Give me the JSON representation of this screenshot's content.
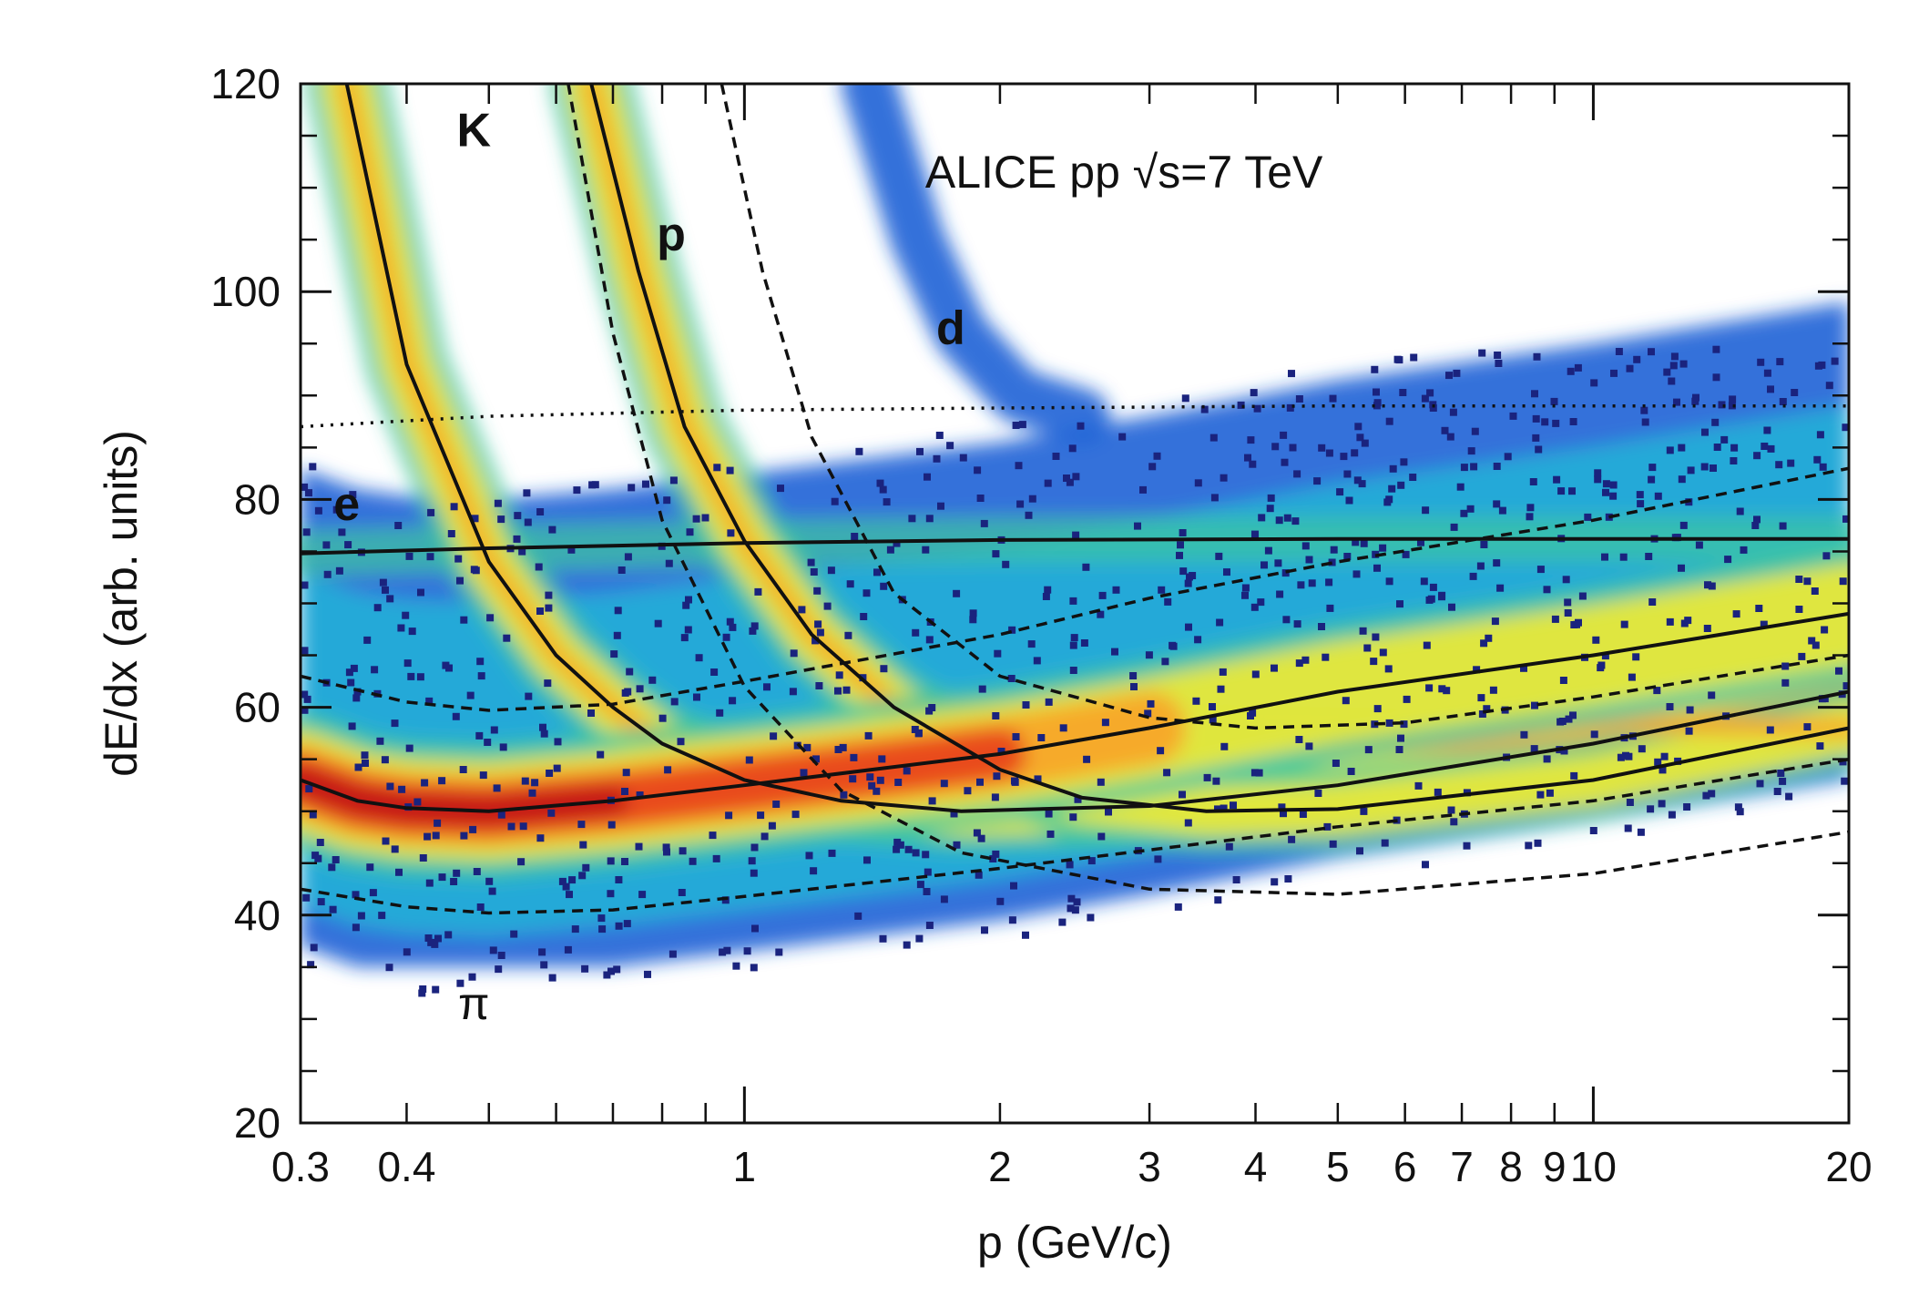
{
  "chart_data": {
    "type": "heatmap",
    "title": "",
    "xlabel": "p (GeV/c)",
    "ylabel": "dE/dx (arb. units)",
    "x_scale": "log",
    "xlim": [
      0.3,
      20
    ],
    "ylim": [
      20,
      120
    ],
    "x_ticks": [
      {
        "value": 0.3,
        "label": "0.3"
      },
      {
        "value": 0.4,
        "label": "0.4"
      },
      {
        "value": 1,
        "label": "1"
      },
      {
        "value": 2,
        "label": "2"
      },
      {
        "value": 3,
        "label": "3"
      },
      {
        "value": 4,
        "label": "4"
      },
      {
        "value": 5,
        "label": "5"
      },
      {
        "value": 6,
        "label": "6"
      },
      {
        "value": 7,
        "label": "7"
      },
      {
        "value": 8,
        "label": "8"
      },
      {
        "value": 9,
        "label": "9"
      },
      {
        "value": 10,
        "label": "10"
      },
      {
        "value": 20,
        "label": "20"
      }
    ],
    "y_ticks": [
      {
        "value": 20,
        "label": "20"
      },
      {
        "value": 40,
        "label": "40"
      },
      {
        "value": 60,
        "label": "60"
      },
      {
        "value": 80,
        "label": "80"
      },
      {
        "value": 100,
        "label": "100"
      },
      {
        "value": 120,
        "label": "120"
      }
    ],
    "colormap": [
      "#1a237e",
      "#1e63d6",
      "#20b4d8",
      "#3fc7a0",
      "#e8e83a",
      "#f7a72a",
      "#e8461e",
      "#c01414"
    ],
    "annotations": [
      {
        "text": "ALICE  pp   √s=7 TeV",
        "x": 2.8,
        "y": 110
      },
      {
        "text": "K",
        "x": 0.48,
        "y": 114
      },
      {
        "text": "p",
        "x": 0.82,
        "y": 104
      },
      {
        "text": "d",
        "x": 1.75,
        "y": 95
      },
      {
        "text": "e",
        "x": 0.34,
        "y": 78
      },
      {
        "text": "π",
        "x": 0.48,
        "y": 30
      }
    ],
    "bands": [
      {
        "name": "π",
        "points": [
          [
            0.3,
            53
          ],
          [
            0.35,
            51
          ],
          [
            0.4,
            50.3
          ],
          [
            0.5,
            50
          ],
          [
            0.7,
            51
          ],
          [
            1,
            52.5
          ],
          [
            2,
            55.5
          ],
          [
            3,
            58
          ],
          [
            5,
            61.5
          ],
          [
            10,
            65
          ],
          [
            20,
            69
          ]
        ]
      },
      {
        "name": "e",
        "points": [
          [
            0.3,
            74.8
          ],
          [
            0.5,
            75.3
          ],
          [
            1,
            75.8
          ],
          [
            2,
            76.1
          ],
          [
            5,
            76.2
          ],
          [
            20,
            76.2
          ]
        ]
      },
      {
        "name": "K",
        "points": [
          [
            0.34,
            120
          ],
          [
            0.4,
            93
          ],
          [
            0.5,
            74
          ],
          [
            0.6,
            65
          ],
          [
            0.7,
            60
          ],
          [
            0.8,
            56.5
          ],
          [
            1,
            53
          ],
          [
            1.3,
            51
          ],
          [
            1.8,
            50
          ],
          [
            3,
            50.5
          ],
          [
            5,
            52.5
          ],
          [
            10,
            56.5
          ],
          [
            20,
            61.5
          ]
        ]
      },
      {
        "name": "p",
        "points": [
          [
            0.66,
            120
          ],
          [
            0.75,
            102
          ],
          [
            0.85,
            87
          ],
          [
            1,
            76
          ],
          [
            1.2,
            67
          ],
          [
            1.5,
            60
          ],
          [
            2,
            54
          ],
          [
            2.5,
            51.3
          ],
          [
            3.5,
            50
          ],
          [
            5,
            50.2
          ],
          [
            10,
            53
          ],
          [
            20,
            58
          ]
        ]
      }
    ],
    "separation_curves": [
      {
        "style": "dotted",
        "points": [
          [
            0.3,
            87
          ],
          [
            0.5,
            88
          ],
          [
            1,
            88.6
          ],
          [
            2,
            88.8
          ],
          [
            5,
            89
          ],
          [
            20,
            89
          ]
        ]
      },
      {
        "style": "dashed",
        "points": [
          [
            0.3,
            63
          ],
          [
            0.4,
            60.5
          ],
          [
            0.5,
            59.7
          ],
          [
            0.7,
            60.3
          ],
          [
            1,
            62.5
          ],
          [
            2,
            67
          ],
          [
            3,
            70.5
          ],
          [
            5,
            74
          ],
          [
            10,
            78
          ],
          [
            20,
            83
          ]
        ]
      },
      {
        "style": "dashed",
        "points": [
          [
            0.3,
            42.5
          ],
          [
            0.4,
            40.8
          ],
          [
            0.5,
            40.2
          ],
          [
            0.7,
            40.5
          ],
          [
            1,
            41.8
          ],
          [
            2,
            44.5
          ],
          [
            5,
            48.5
          ],
          [
            10,
            51
          ],
          [
            20,
            55
          ]
        ]
      },
      {
        "style": "dashed",
        "points": [
          [
            0.62,
            120
          ],
          [
            0.7,
            96
          ],
          [
            0.8,
            78
          ],
          [
            1,
            62
          ],
          [
            1.3,
            52
          ],
          [
            1.8,
            46
          ],
          [
            3,
            42.5
          ],
          [
            5,
            42
          ],
          [
            10,
            44
          ],
          [
            20,
            48
          ]
        ]
      },
      {
        "style": "dashed",
        "points": [
          [
            0.94,
            120
          ],
          [
            1.05,
            102
          ],
          [
            1.2,
            86
          ],
          [
            1.5,
            71
          ],
          [
            2,
            63
          ],
          [
            3,
            59
          ],
          [
            4,
            58
          ],
          [
            6,
            58.5
          ],
          [
            10,
            61
          ],
          [
            20,
            65
          ]
        ]
      }
    ],
    "deuteron_band": {
      "points": [
        [
          1.4,
          120
        ],
        [
          1.6,
          105
        ],
        [
          1.8,
          96
        ],
        [
          2.1,
          90
        ],
        [
          2.5,
          88
        ]
      ]
    }
  }
}
